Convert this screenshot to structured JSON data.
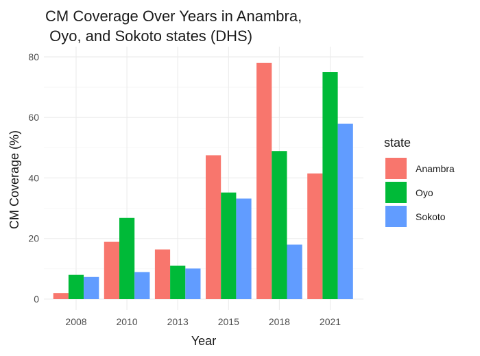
{
  "chart_data": {
    "type": "bar",
    "title_line1": "CM Coverage Over Years in Anambra,",
    "title_line2": " Oyo, and Sokoto states (DHS)",
    "xlabel": "Year",
    "ylabel": "CM Coverage (%)",
    "categories": [
      "2008",
      "2010",
      "2013",
      "2015",
      "2018",
      "2021"
    ],
    "ylim": [
      0,
      80
    ],
    "yticks": [
      "0",
      "20",
      "40",
      "60",
      "80"
    ],
    "grid": true,
    "legend_position": "right",
    "legend_title": "state",
    "series": [
      {
        "name": "Anambra",
        "color": "#F8766D",
        "values": [
          2.0,
          18.9,
          16.4,
          47.5,
          78.0,
          41.5
        ]
      },
      {
        "name": "Oyo",
        "color": "#00BA38",
        "values": [
          8.0,
          26.8,
          11.0,
          35.2,
          48.9,
          75.0
        ]
      },
      {
        "name": "Sokoto",
        "color": "#619CFF",
        "values": [
          7.3,
          8.9,
          10.1,
          33.2,
          18.0,
          57.9
        ]
      }
    ]
  }
}
